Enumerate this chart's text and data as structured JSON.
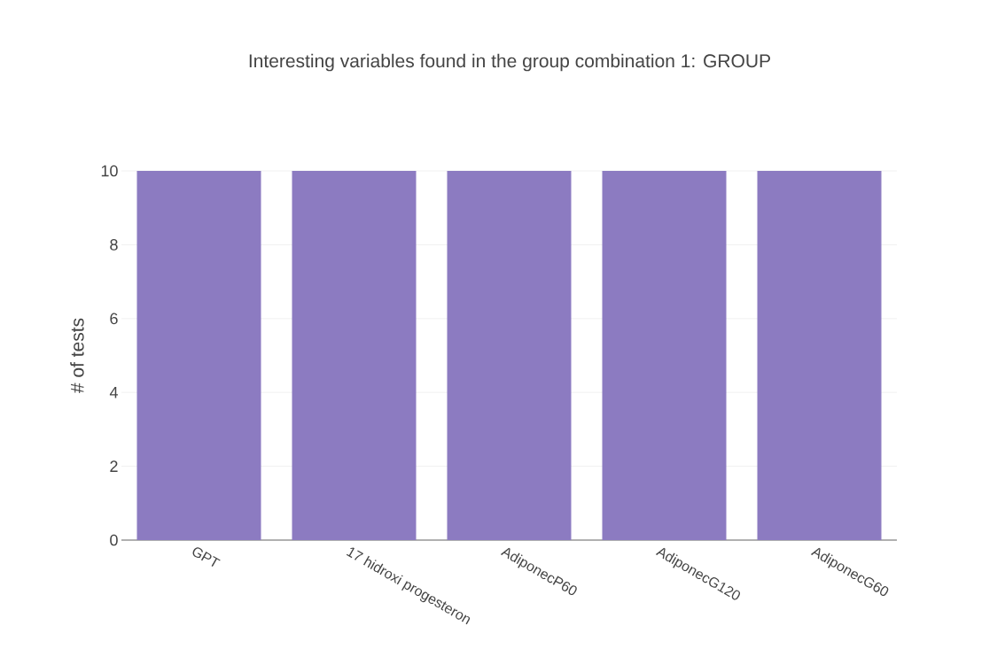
{
  "chart_data": {
    "type": "bar",
    "title": "Interesting variables found in the group combination 1: GROUP",
    "ylabel": "# of tests",
    "categories": [
      "GPT",
      "17 hidroxi progesteron",
      "AdiponecP60",
      "AdiponecG120",
      "AdiponecG60"
    ],
    "values": [
      10,
      10,
      10,
      10,
      10
    ],
    "color": "#8c7bc1",
    "ylim": [
      0,
      10
    ],
    "yticks": [
      0,
      2,
      4,
      6,
      8,
      10
    ],
    "grid": "y"
  }
}
